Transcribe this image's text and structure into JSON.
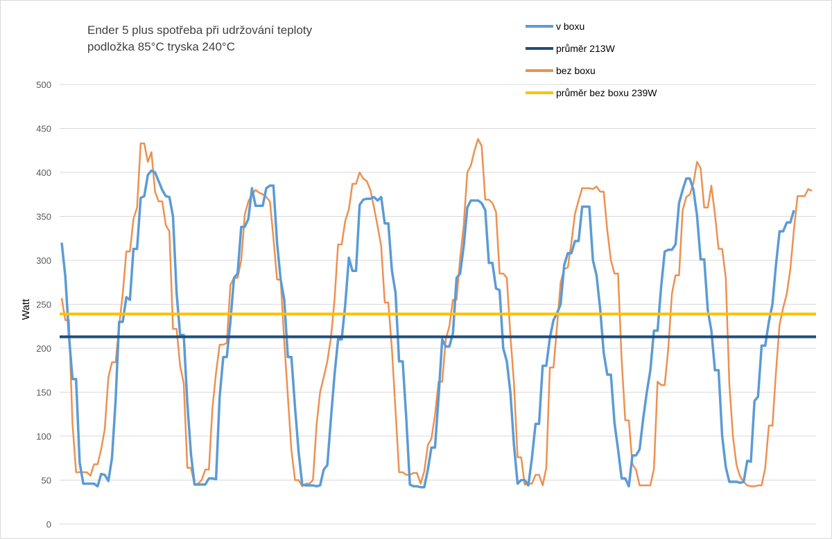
{
  "chart_data": {
    "type": "line",
    "title_lines": [
      "Ender 5 plus spotřeba při udržování teploty",
      "podložka 85°C  tryska 240°C"
    ],
    "xlabel": "",
    "ylabel": "Watt",
    "ylim": [
      0,
      500
    ],
    "yticks": [
      0,
      50,
      100,
      150,
      200,
      250,
      300,
      350,
      400,
      450,
      500
    ],
    "grid": true,
    "legend_position": "top-right",
    "series": [
      {
        "name": "v boxu",
        "color": "#5b9bd5",
        "values": [
          320,
          282,
          215,
          165,
          165,
          70,
          46,
          46,
          46,
          46,
          43,
          57,
          56,
          49,
          75,
          140,
          230,
          230,
          258,
          255,
          313,
          313,
          371,
          373,
          397,
          402,
          400,
          390,
          380,
          373,
          372,
          350,
          263,
          215,
          215,
          137,
          80,
          45,
          45,
          45,
          45,
          52,
          52,
          51,
          145,
          190,
          190,
          230,
          280,
          285,
          338,
          338,
          347,
          382,
          362,
          362,
          362,
          382,
          385,
          385,
          320,
          278,
          255,
          190,
          190,
          133,
          82,
          45,
          44,
          44,
          44,
          43,
          44,
          62,
          67,
          120,
          170,
          210,
          210,
          250,
          303,
          288,
          288,
          363,
          369,
          370,
          370,
          372,
          368,
          372,
          342,
          342,
          288,
          263,
          185,
          185,
          120,
          45,
          43,
          43,
          42,
          42,
          62,
          87,
          87,
          145,
          210,
          202,
          202,
          217,
          280,
          285,
          316,
          360,
          368,
          368,
          368,
          365,
          357,
          297,
          297,
          268,
          266,
          200,
          185,
          150,
          90,
          46,
          50,
          50,
          44,
          75,
          114,
          114,
          180,
          180,
          212,
          232,
          240,
          250,
          295,
          308,
          308,
          322,
          322,
          361,
          361,
          361,
          300,
          283,
          245,
          195,
          170,
          170,
          115,
          85,
          52,
          52,
          43,
          78,
          78,
          85,
          120,
          150,
          175,
          220,
          220,
          270,
          310,
          312,
          312,
          318,
          365,
          380,
          393,
          393,
          380,
          351,
          301,
          301,
          243,
          220,
          175,
          175,
          100,
          65,
          48,
          48,
          48,
          47,
          48,
          72,
          71,
          140,
          145,
          203,
          203,
          230,
          250,
          295,
          333,
          333,
          343,
          343,
          357
        ]
      },
      {
        "name": "průměr 213W",
        "color": "#1f4e79",
        "constant": 213
      },
      {
        "name": "bez boxu",
        "color": "#ed9050",
        "values": [
          257,
          232,
          232,
          115,
          59,
          59,
          59,
          59,
          55,
          68,
          68,
          85,
          108,
          167,
          184,
          184,
          225,
          262,
          310,
          310,
          347,
          360,
          433,
          433,
          412,
          423,
          378,
          367,
          367,
          340,
          333,
          222,
          222,
          180,
          160,
          64,
          64,
          45,
          46,
          50,
          62,
          62,
          132,
          172,
          204,
          204,
          206,
          272,
          280,
          280,
          300,
          352,
          367,
          375,
          380,
          377,
          375,
          372,
          367,
          325,
          278,
          278,
          207,
          145,
          84,
          50,
          50,
          43,
          46,
          46,
          50,
          113,
          150,
          167,
          185,
          212,
          255,
          318,
          318,
          345,
          358,
          387,
          387,
          400,
          393,
          390,
          380,
          360,
          339,
          316,
          252,
          252,
          198,
          129,
          59,
          59,
          56,
          56,
          58,
          58,
          46,
          60,
          90,
          97,
          124,
          162,
          162,
          210,
          225,
          255,
          255,
          303,
          340,
          400,
          408,
          425,
          438,
          430,
          369,
          369,
          365,
          355,
          285,
          285,
          280,
          215,
          160,
          76,
          76,
          45,
          46,
          46,
          56,
          56,
          44,
          64,
          178,
          178,
          225,
          275,
          290,
          292,
          320,
          353,
          368,
          382,
          382,
          382,
          381,
          384,
          378,
          378,
          334,
          300,
          285,
          285,
          187,
          118,
          118,
          68,
          62,
          44,
          44,
          44,
          44,
          63,
          162,
          158,
          158,
          200,
          262,
          283,
          283,
          357,
          372,
          375,
          388,
          412,
          405,
          360,
          360,
          385,
          352,
          313,
          313,
          280,
          160,
          100,
          67,
          54,
          48,
          44,
          43,
          43,
          44,
          44,
          64,
          112,
          112,
          173,
          227,
          246,
          262,
          290,
          335,
          373,
          373,
          373,
          381,
          379
        ]
      },
      {
        "name": "průměr bez boxu 239W",
        "color": "#ffc000",
        "constant": 239
      }
    ]
  }
}
